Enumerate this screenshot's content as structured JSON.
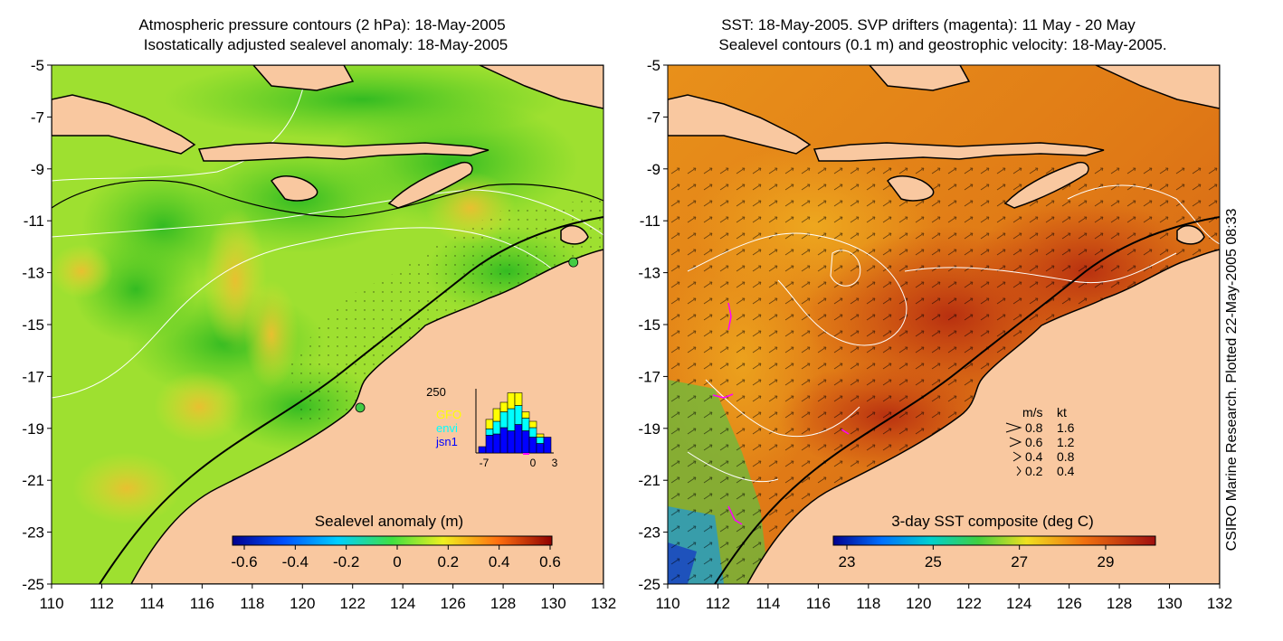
{
  "left_panel": {
    "title_line1": "Atmospheric pressure contours (2 hPa): 18-May-2005",
    "title_line2": "Isostatically adjusted sealevel anomaly: 18-May-2005",
    "colorbar_label": "Sealevel anomaly (m)",
    "colorbar_ticks": [
      "-0.6",
      "-0.4",
      "-0.2",
      "0",
      "0.2",
      "0.4",
      "0.6"
    ],
    "inset": {
      "ymax_label": "250",
      "x_ticks": [
        "-7",
        "0",
        "3"
      ],
      "legend": [
        {
          "label": "GFO",
          "color": "#ffff00"
        },
        {
          "label": "envi",
          "color": "#00ffff"
        },
        {
          "label": "jsn1",
          "color": "#0000ff"
        }
      ],
      "bars": [
        {
          "gfo": 0,
          "envi": 0,
          "jsn1": 0.1
        },
        {
          "gfo": 0.15,
          "envi": 0.1,
          "jsn1": 0.28
        },
        {
          "gfo": 0.2,
          "envi": 0.2,
          "jsn1": 0.3
        },
        {
          "gfo": 0.15,
          "envi": 0.25,
          "jsn1": 0.4
        },
        {
          "gfo": 0.25,
          "envi": 0.35,
          "jsn1": 0.35
        },
        {
          "gfo": 0.2,
          "envi": 0.3,
          "jsn1": 0.45
        },
        {
          "gfo": 0.1,
          "envi": 0.2,
          "jsn1": 0.35
        },
        {
          "gfo": 0.1,
          "envi": 0.15,
          "jsn1": 0.25
        },
        {
          "gfo": 0.05,
          "envi": 0.1,
          "jsn1": 0.15
        },
        {
          "gfo": 0,
          "envi": 0,
          "jsn1": 0.25
        }
      ]
    },
    "markers": [
      {
        "lon": 122.3,
        "lat": -18.2
      },
      {
        "lon": 130.8,
        "lat": -12.6
      }
    ]
  },
  "right_panel": {
    "title_line1": "SST: 18-May-2005. SVP drifters (magenta): 11 May - 20 May",
    "title_line2": "Sealevel contours (0.1 m) and geostrophic velocity: 18-May-2005.",
    "colorbar_label": "3-day SST composite (deg C)",
    "colorbar_ticks": [
      "23",
      "25",
      "27",
      "29"
    ],
    "velocity_legend": {
      "header_ms": "m/s",
      "header_kt": "kt",
      "rows": [
        {
          "ms": "0.8",
          "kt": "1.6"
        },
        {
          "ms": "0.6",
          "kt": "1.2"
        },
        {
          "ms": "0.4",
          "kt": "0.8"
        },
        {
          "ms": "0.2",
          "kt": "0.4"
        }
      ]
    }
  },
  "axes": {
    "x_ticks": [
      "110",
      "112",
      "114",
      "116",
      "118",
      "120",
      "122",
      "124",
      "126",
      "128",
      "130",
      "132"
    ],
    "y_ticks": [
      "-5",
      "-7",
      "-9",
      "-11",
      "-13",
      "-15",
      "-17",
      "-19",
      "-21",
      "-23",
      "-25"
    ],
    "lon_range": [
      110,
      132
    ],
    "lat_range": [
      -25,
      -5
    ]
  },
  "credit": "CSIRO Marine Research. Plotted 22-May-2005 08:33",
  "colors": {
    "land": "#f9c8a0",
    "sea_low": "#33cc22",
    "sea_high": "#e8e030",
    "sst_warm": "#c84010",
    "sst_mid": "#e87c14",
    "drifter": "#ff00ff"
  }
}
